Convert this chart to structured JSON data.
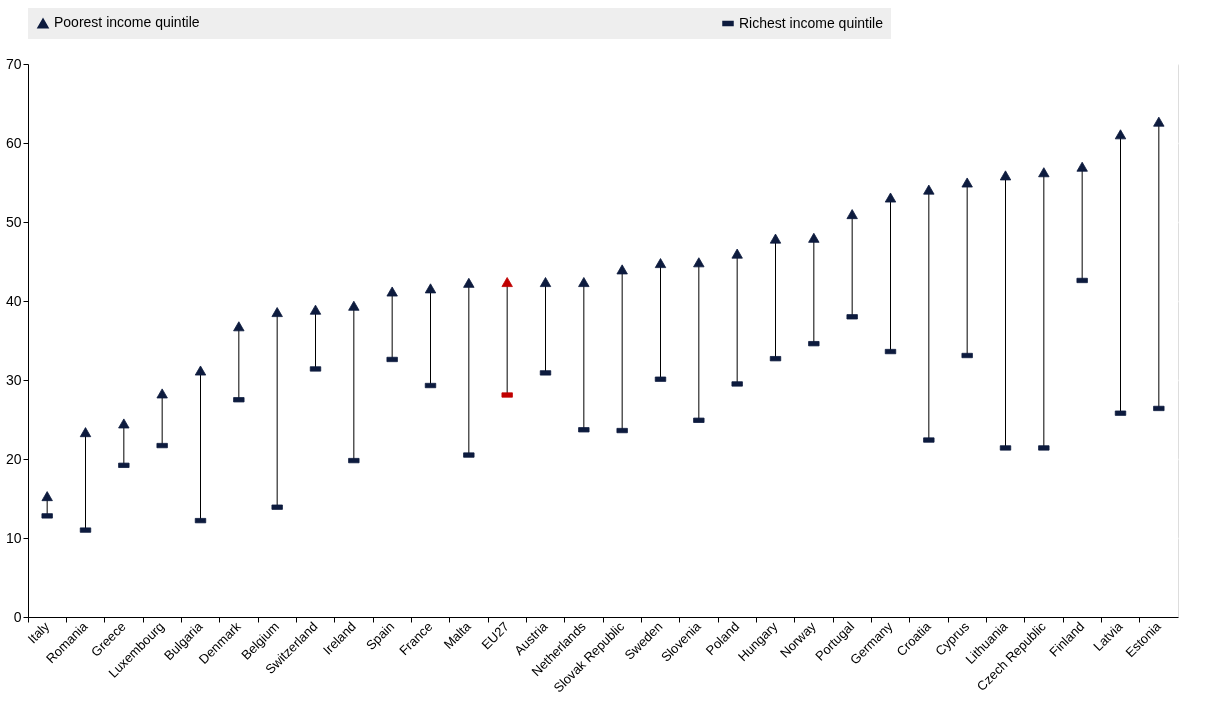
{
  "chart_data": {
    "type": "scatter",
    "categories": [
      "Italy",
      "Romania",
      "Greece",
      "Luxembourg",
      "Bulgaria",
      "Denmark",
      "Belgium",
      "Switzerland",
      "Ireland",
      "Spain",
      "France",
      "Malta",
      "EU27",
      "Austria",
      "Netherlands",
      "Slovak Republic",
      "Sweden",
      "Slovenia",
      "Poland",
      "Hungary",
      "Norway",
      "Portugal",
      "Germany",
      "Croatia",
      "Cyprus",
      "Lithuania",
      "Czech Republic",
      "Finland",
      "Latvia",
      "Estonia"
    ],
    "series": [
      {
        "name": "Poorest income quintile",
        "color": "#0d1b3e",
        "marker": "triangle",
        "colors": [
          "#0d1b3e",
          "#0d1b3e",
          "#0d1b3e",
          "#0d1b3e",
          "#0d1b3e",
          "#0d1b3e",
          "#0d1b3e",
          "#0d1b3e",
          "#0d1b3e",
          "#0d1b3e",
          "#0d1b3e",
          "#0d1b3e",
          "#c00000",
          "#0d1b3e",
          "#0d1b3e",
          "#0d1b3e",
          "#0d1b3e",
          "#0d1b3e",
          "#0d1b3e",
          "#0d1b3e",
          "#0d1b3e",
          "#0d1b3e",
          "#0d1b3e",
          "#0d1b3e",
          "#0d1b3e",
          "#0d1b3e",
          "#0d1b3e",
          "#0d1b3e",
          "#0d1b3e",
          "#0d1b3e"
        ],
        "values": [
          15.3,
          23.4,
          24.5,
          28.3,
          31.2,
          36.8,
          38.6,
          38.9,
          39.4,
          41.2,
          41.6,
          42.3,
          42.4,
          42.4,
          42.4,
          44.0,
          44.8,
          44.9,
          46.0,
          47.9,
          48.0,
          51.0,
          53.1,
          54.1,
          55.0,
          55.9,
          56.3,
          57.0,
          61.1,
          62.7
        ]
      },
      {
        "name": "Richest income quintile",
        "color": "#0d1b3e",
        "marker": "square",
        "colors": [
          "#0d1b3e",
          "#0d1b3e",
          "#0d1b3e",
          "#0d1b3e",
          "#0d1b3e",
          "#0d1b3e",
          "#0d1b3e",
          "#0d1b3e",
          "#0d1b3e",
          "#0d1b3e",
          "#0d1b3e",
          "#0d1b3e",
          "#c00000",
          "#0d1b3e",
          "#0d1b3e",
          "#0d1b3e",
          "#0d1b3e",
          "#0d1b3e",
          "#0d1b3e",
          "#0d1b3e",
          "#0d1b3e",
          "#0d1b3e",
          "#0d1b3e",
          "#0d1b3e",
          "#0d1b3e",
          "#0d1b3e",
          "#0d1b3e",
          "#0d1b3e",
          "#0d1b3e",
          "#0d1b3e"
        ],
        "values": [
          12.8,
          11.0,
          19.2,
          21.7,
          12.2,
          27.5,
          13.9,
          31.4,
          19.8,
          32.6,
          29.3,
          20.5,
          28.1,
          30.9,
          23.7,
          23.6,
          30.1,
          24.9,
          29.5,
          32.7,
          34.6,
          38.0,
          33.6,
          22.4,
          33.1,
          21.4,
          21.4,
          42.6,
          25.8,
          26.4
        ]
      }
    ],
    "ylim": [
      0,
      70
    ],
    "yticks": [
      0,
      10,
      20,
      30,
      40,
      50,
      60,
      70
    ],
    "grid": true,
    "legend": "top"
  }
}
